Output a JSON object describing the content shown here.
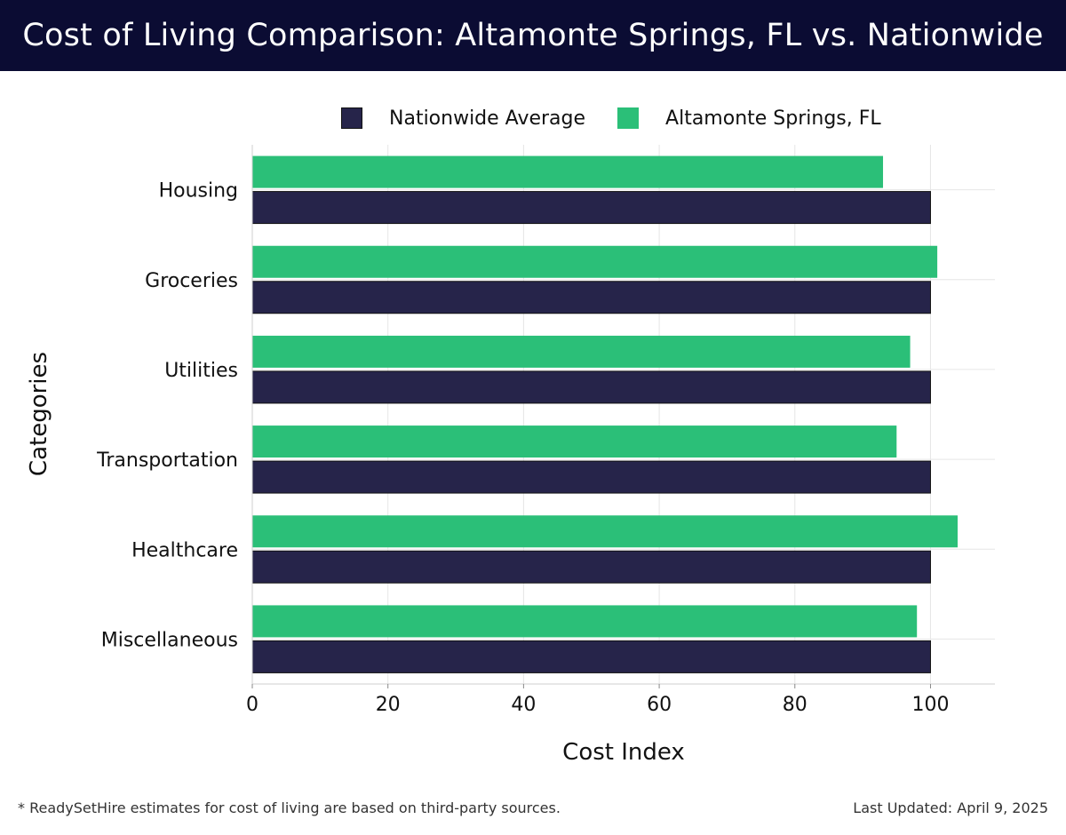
{
  "header": {
    "title": "Cost of Living Comparison: Altamonte Springs, FL vs. Nationwide"
  },
  "legend": {
    "items": [
      {
        "label": "Nationwide Average",
        "color": "#26244a"
      },
      {
        "label": "Altamonte Springs, FL",
        "color": "#2bbf78"
      }
    ]
  },
  "chart_data": {
    "type": "bar",
    "orientation": "horizontal",
    "title": "Cost of Living Comparison: Altamonte Springs, FL vs. Nationwide",
    "xlabel": "Cost Index",
    "ylabel": "Categories",
    "categories": [
      "Housing",
      "Groceries",
      "Utilities",
      "Transportation",
      "Healthcare",
      "Miscellaneous"
    ],
    "series": [
      {
        "name": "Altamonte Springs, FL",
        "color": "#2bbf78",
        "values": [
          93,
          101,
          97,
          95,
          104,
          98
        ]
      },
      {
        "name": "Nationwide Average",
        "color": "#26244a",
        "values": [
          100,
          100,
          100,
          100,
          100,
          100
        ]
      }
    ],
    "xlim": [
      0,
      109.5
    ],
    "xticks": [
      0,
      20,
      40,
      60,
      80,
      100
    ],
    "grid": true,
    "legend_position": "top"
  },
  "footer": {
    "note": "* ReadySetHire estimates for cost of living are based on third-party sources.",
    "updated": "Last Updated: April 9, 2025"
  }
}
